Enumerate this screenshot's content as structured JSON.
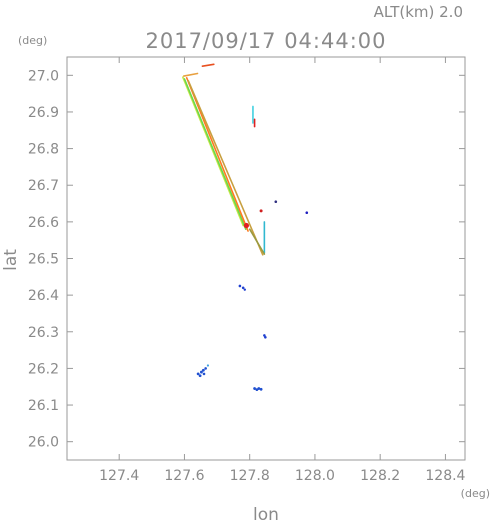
{
  "header": {
    "alt_label": "ALT(km) 2.0",
    "datetime": "2017/09/17 04:44:00"
  },
  "chart_data": {
    "type": "scatter",
    "title": "2017/09/17 04:44:00",
    "subtitle": "ALT(km) 2.0",
    "xlabel": "lon",
    "ylabel": "lat",
    "x_unit": "(deg)",
    "y_unit": "(deg)",
    "xlim": [
      127.24,
      128.46
    ],
    "ylim": [
      25.95,
      27.05
    ],
    "xticks": [
      127.4,
      127.6,
      127.8,
      128.0,
      128.2,
      128.4
    ],
    "xtick_labels": [
      "127.4",
      "127.6",
      "127.8",
      "128.0",
      "128.2",
      "128.4"
    ],
    "yticks": [
      26.0,
      26.1,
      26.2,
      26.3,
      26.4,
      26.5,
      26.6,
      26.7,
      26.8,
      26.9,
      27.0
    ],
    "ytick_labels": [
      "26.0",
      "26.1",
      "26.2",
      "26.3",
      "26.4",
      "26.5",
      "26.6",
      "26.7",
      "26.8",
      "26.9",
      "27.0"
    ],
    "grid": false,
    "segments": [
      {
        "x1": 127.595,
        "y1": 26.995,
        "x2": 127.78,
        "y2": 26.59,
        "color": "#c8e84a"
      },
      {
        "x1": 127.6,
        "y1": 26.99,
        "x2": 127.788,
        "y2": 26.58,
        "color": "#6cd84a"
      },
      {
        "x1": 127.607,
        "y1": 26.993,
        "x2": 127.795,
        "y2": 26.575,
        "color": "#ff7a20"
      },
      {
        "x1": 127.612,
        "y1": 26.985,
        "x2": 127.84,
        "y2": 26.51,
        "color": "#c8a040"
      },
      {
        "x1": 127.598,
        "y1": 26.998,
        "x2": 127.64,
        "y2": 27.005,
        "color": "#e8a040"
      },
      {
        "x1": 127.655,
        "y1": 27.025,
        "x2": 127.69,
        "y2": 27.03,
        "color": "#e85020"
      },
      {
        "x1": 127.81,
        "y1": 26.915,
        "x2": 127.81,
        "y2": 26.87,
        "color": "#40d0e0"
      },
      {
        "x1": 127.815,
        "y1": 26.88,
        "x2": 127.815,
        "y2": 26.86,
        "color": "#e02020"
      },
      {
        "x1": 127.845,
        "y1": 26.6,
        "x2": 127.845,
        "y2": 26.515,
        "color": "#30b8d0"
      },
      {
        "x1": 127.845,
        "y1": 26.512,
        "x2": 127.8,
        "y2": 26.58,
        "color": "#9a9a40"
      }
    ],
    "points": [
      {
        "x": 127.79,
        "y": 26.59,
        "color": "#e02020",
        "r": 2.6
      },
      {
        "x": 127.835,
        "y": 26.63,
        "color": "#d02020",
        "r": 1.5
      },
      {
        "x": 127.88,
        "y": 26.655,
        "color": "#303080",
        "r": 1.3
      },
      {
        "x": 127.975,
        "y": 26.625,
        "color": "#2020c0",
        "r": 1.3
      },
      {
        "x": 127.77,
        "y": 26.425,
        "color": "#2040d0",
        "r": 1.3
      },
      {
        "x": 127.78,
        "y": 26.42,
        "color": "#2040d0",
        "r": 1.3
      },
      {
        "x": 127.785,
        "y": 26.415,
        "color": "#2040d0",
        "r": 1.2
      },
      {
        "x": 127.845,
        "y": 26.29,
        "color": "#2040d0",
        "r": 1.3
      },
      {
        "x": 127.848,
        "y": 26.285,
        "color": "#2040d0",
        "r": 1.3
      },
      {
        "x": 127.642,
        "y": 26.185,
        "color": "#2050d0",
        "r": 1.4
      },
      {
        "x": 127.648,
        "y": 26.18,
        "color": "#2050d0",
        "r": 1.4
      },
      {
        "x": 127.652,
        "y": 26.19,
        "color": "#2050d0",
        "r": 1.4
      },
      {
        "x": 127.658,
        "y": 26.195,
        "color": "#2050d0",
        "r": 1.4
      },
      {
        "x": 127.665,
        "y": 26.2,
        "color": "#2050d0",
        "r": 1.3
      },
      {
        "x": 127.66,
        "y": 26.185,
        "color": "#2050d0",
        "r": 1.3
      },
      {
        "x": 127.672,
        "y": 26.208,
        "color": "#40a0e0",
        "r": 1.1
      },
      {
        "x": 127.815,
        "y": 26.145,
        "color": "#2050d0",
        "r": 1.4
      },
      {
        "x": 127.822,
        "y": 26.142,
        "color": "#2050d0",
        "r": 1.4
      },
      {
        "x": 127.828,
        "y": 26.145,
        "color": "#2050d0",
        "r": 1.4
      },
      {
        "x": 127.835,
        "y": 26.143,
        "color": "#2050d0",
        "r": 1.4
      }
    ]
  }
}
